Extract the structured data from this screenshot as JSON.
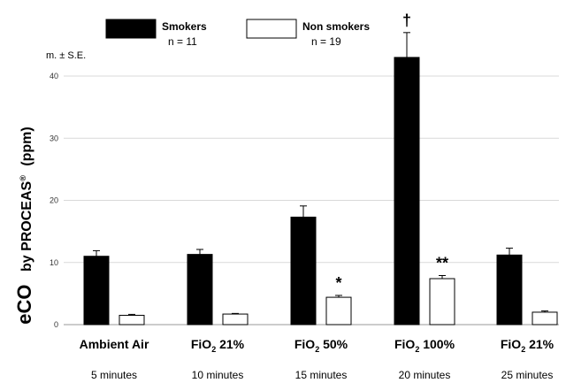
{
  "chart_data": {
    "type": "bar",
    "title": "",
    "xlabel": "",
    "ylabel": "by PROCEAS",
    "ylabel_prefix": "eCO",
    "ylabel_sup": "®",
    "ylabel_unit": "(ppm)",
    "ylim": [
      0,
      45
    ],
    "yticks": [
      0,
      10,
      20,
      30,
      40
    ],
    "grid": true,
    "legend_position": "top",
    "stat_note": "m. ± S.E.",
    "categories": [
      {
        "label": "Ambient Air",
        "sub": "",
        "time": "5 minutes"
      },
      {
        "label": "FiO",
        "sub": "2",
        "suffix": " 21%",
        "time": "10 minutes"
      },
      {
        "label": "FiO",
        "sub": "2",
        "suffix": " 50%",
        "time": "15 minutes"
      },
      {
        "label": "FiO",
        "sub": "2",
        "suffix": " 100%",
        "time": "20 minutes"
      },
      {
        "label": "FiO",
        "sub": "2",
        "suffix": " 21%",
        "time": "25 minutes"
      }
    ],
    "series": [
      {
        "name": "Smokers",
        "n_label": "n = 11",
        "color": "#000000",
        "values": [
          11.0,
          11.3,
          17.3,
          43.0,
          11.2
        ],
        "errors": [
          0.9,
          0.8,
          1.8,
          4.0,
          1.1
        ],
        "annotations": [
          "",
          "",
          "",
          "†",
          ""
        ]
      },
      {
        "name": "Non smokers",
        "n_label": "n = 19",
        "color": "#ffffff",
        "values": [
          1.5,
          1.7,
          4.4,
          7.4,
          2.0
        ],
        "errors": [
          0.15,
          0.1,
          0.3,
          0.5,
          0.2
        ],
        "annotations": [
          "",
          "",
          "*",
          "**",
          ""
        ]
      }
    ]
  }
}
